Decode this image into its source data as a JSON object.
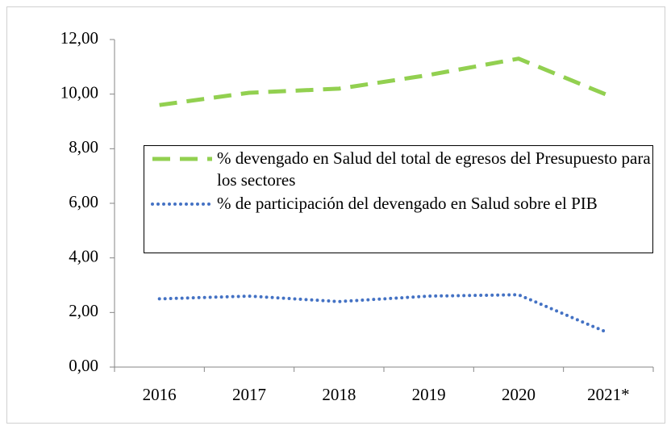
{
  "chart_data": {
    "type": "line",
    "categories": [
      "2016",
      "2017",
      "2018",
      "2019",
      "2020",
      "2021*"
    ],
    "series": [
      {
        "name": "% devengado en Salud del total de egresos del Presupuesto para los sectores",
        "color": "#92d050",
        "dash": "dashed",
        "values": [
          9.6,
          10.05,
          10.2,
          10.7,
          11.3,
          9.95
        ]
      },
      {
        "name": "% de participación  del devengado en Salud sobre el  PIB",
        "color": "#4472c4",
        "dash": "dotted",
        "values": [
          2.5,
          2.6,
          2.4,
          2.6,
          2.65,
          1.25
        ]
      }
    ],
    "ylim": [
      0,
      12
    ],
    "yticks": [
      {
        "value": 0,
        "label": "0,00"
      },
      {
        "value": 2,
        "label": "2,00"
      },
      {
        "value": 4,
        "label": "4,00"
      },
      {
        "value": 6,
        "label": "6,00"
      },
      {
        "value": 8,
        "label": "8,00"
      },
      {
        "value": 10,
        "label": "10,00"
      },
      {
        "value": 12,
        "label": "12,00"
      }
    ],
    "grid": false
  }
}
